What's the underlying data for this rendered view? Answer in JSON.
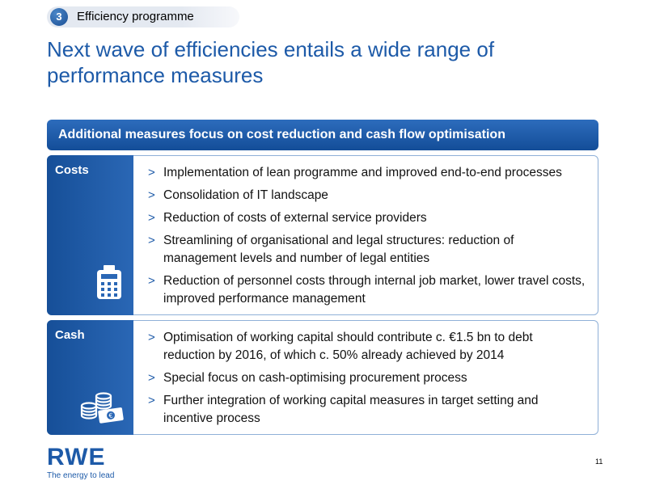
{
  "section": {
    "number": "3",
    "label": "Efficiency programme"
  },
  "title": "Next wave of efficiencies entails a wide range of performance measures",
  "banner": "Additional measures focus on cost reduction and cash flow optimisation",
  "panels": [
    {
      "label": "Costs",
      "icon": "calculator-icon",
      "bullets": [
        "Implementation of lean programme and improved end-to-end processes",
        "Consolidation of IT landscape",
        "Reduction of costs of external service providers",
        "Streamlining of organisational and legal structures: reduction of management levels and number of legal entities",
        "Reduction of personnel costs through internal job market, lower travel costs, improved performance management"
      ]
    },
    {
      "label": "Cash",
      "icon": "coins-banknote-icon",
      "bullets": [
        "Optimisation of working capital should contribute c. €1.5 bn to debt reduction by 2016, of which c. 50% already achieved by 2014",
        "Special focus on cash-optimising procurement process",
        "Further integration of working capital measures in target setting and incentive process"
      ]
    }
  ],
  "bullet_marker": ">",
  "logo": {
    "text": "RWE",
    "tagline": "The energy to lead"
  },
  "page_number": "11",
  "colors": {
    "primary": "#1d5aa8",
    "dark": "#134d98",
    "border": "#8fb0d8"
  }
}
